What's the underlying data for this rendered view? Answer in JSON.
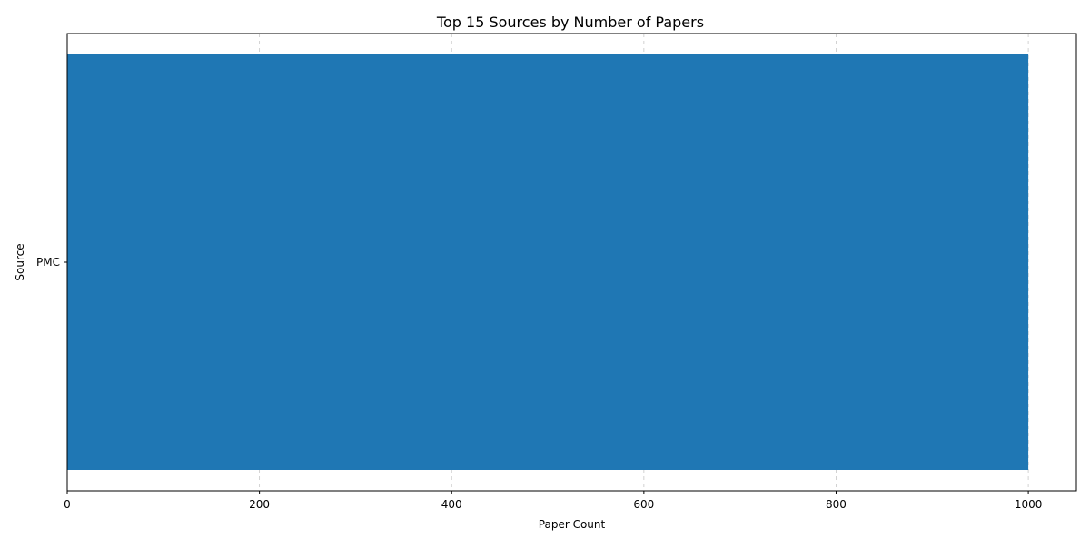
{
  "chart_data": {
    "type": "bar",
    "orientation": "horizontal",
    "title": "Top 15 Sources by Number of Papers",
    "xlabel": "Paper Count",
    "ylabel": "Source",
    "categories": [
      "PMC"
    ],
    "values": [
      1000
    ],
    "xlim": [
      0,
      1050
    ],
    "xticks": [
      0,
      200,
      400,
      600,
      800,
      1000
    ],
    "grid": "x-axis dashed",
    "bar_color": "#1f77b4",
    "legend": "none"
  }
}
